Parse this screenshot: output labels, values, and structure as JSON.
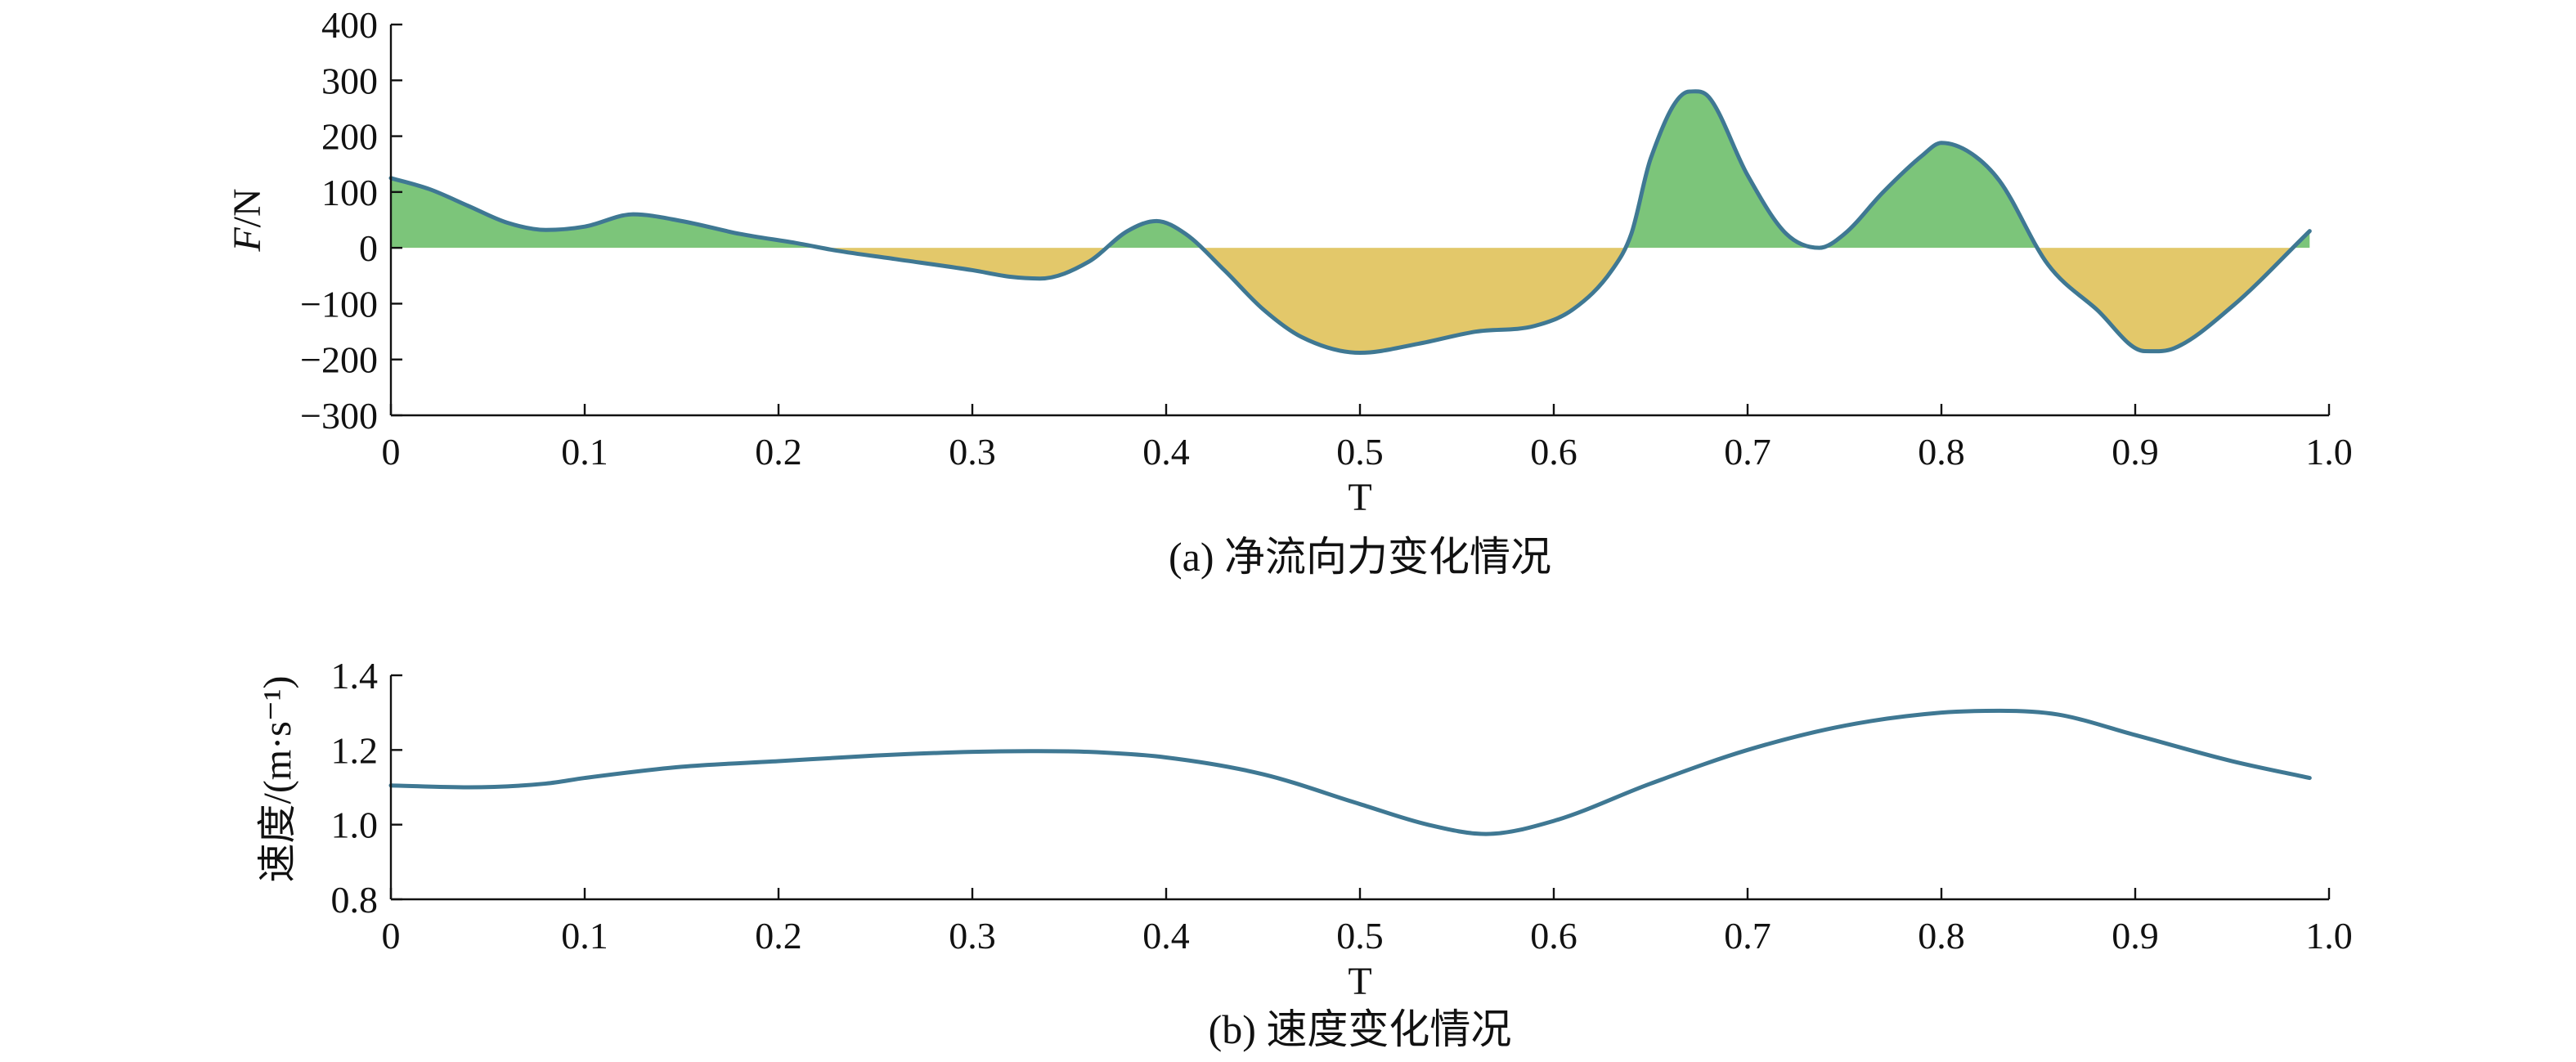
{
  "chart_data": [
    {
      "type": "area",
      "panel": "a",
      "caption": "(a) 净流向力变化情况",
      "xlabel": "T",
      "ylabel": "F/N",
      "xlim": [
        0,
        1.0
      ],
      "ylim": [
        -300,
        400
      ],
      "xticks": [
        "0",
        "0.1",
        "0.2",
        "0.3",
        "0.4",
        "0.5",
        "0.6",
        "0.7",
        "0.8",
        "0.9",
        "1.0"
      ],
      "yticks": [
        "400",
        "300",
        "200",
        "100",
        "0",
        "−100",
        "−200",
        "−300"
      ],
      "positive_fill_color": "#7cc57a",
      "negative_fill_color": "#e3c86a",
      "line_color": "#3f7893",
      "x": [
        0,
        0.02,
        0.04,
        0.06,
        0.08,
        0.1,
        0.125,
        0.15,
        0.18,
        0.21,
        0.23,
        0.26,
        0.3,
        0.32,
        0.335,
        0.36,
        0.38,
        0.395,
        0.41,
        0.43,
        0.45,
        0.47,
        0.5,
        0.53,
        0.56,
        0.59,
        0.61,
        0.63,
        0.64,
        0.65,
        0.67,
        0.68,
        0.7,
        0.72,
        0.737,
        0.75,
        0.77,
        0.79,
        0.8,
        0.815,
        0.83,
        0.855,
        0.88,
        0.905,
        0.92,
        0.95,
        0.99
      ],
      "y": [
        125,
        105,
        75,
        45,
        32,
        38,
        60,
        48,
        25,
        8,
        -5,
        -20,
        -40,
        -52,
        -55,
        -25,
        30,
        48,
        25,
        -40,
        -110,
        -160,
        -188,
        -172,
        -150,
        -140,
        -110,
        -40,
        25,
        160,
        280,
        270,
        130,
        25,
        0,
        25,
        100,
        165,
        188,
        170,
        120,
        -30,
        -110,
        -185,
        -180,
        -105,
        30
      ]
    },
    {
      "type": "line",
      "panel": "b",
      "caption": "(b) 速度变化情况",
      "xlabel": "T",
      "ylabel": "速度/(m·s⁻¹)",
      "xlim": [
        0,
        1.0
      ],
      "ylim": [
        0.8,
        1.4
      ],
      "xticks": [
        "0",
        "0.1",
        "0.2",
        "0.3",
        "0.4",
        "0.5",
        "0.6",
        "0.7",
        "0.8",
        "0.9",
        "1.0"
      ],
      "yticks": [
        "1.4",
        "1.2",
        "1.0",
        "0.8"
      ],
      "line_color": "#3f7893",
      "x": [
        0,
        0.04,
        0.08,
        0.1,
        0.15,
        0.2,
        0.25,
        0.3,
        0.33,
        0.36,
        0.4,
        0.45,
        0.5,
        0.535,
        0.565,
        0.6,
        0.65,
        0.7,
        0.75,
        0.8,
        0.83,
        0.86,
        0.9,
        0.95,
        0.99
      ],
      "y": [
        1.105,
        1.1,
        1.11,
        1.125,
        1.155,
        1.17,
        1.185,
        1.195,
        1.197,
        1.195,
        1.18,
        1.135,
        1.055,
        1.0,
        0.975,
        1.01,
        1.11,
        1.2,
        1.265,
        1.3,
        1.305,
        1.295,
        1.24,
        1.17,
        1.125
      ]
    }
  ]
}
